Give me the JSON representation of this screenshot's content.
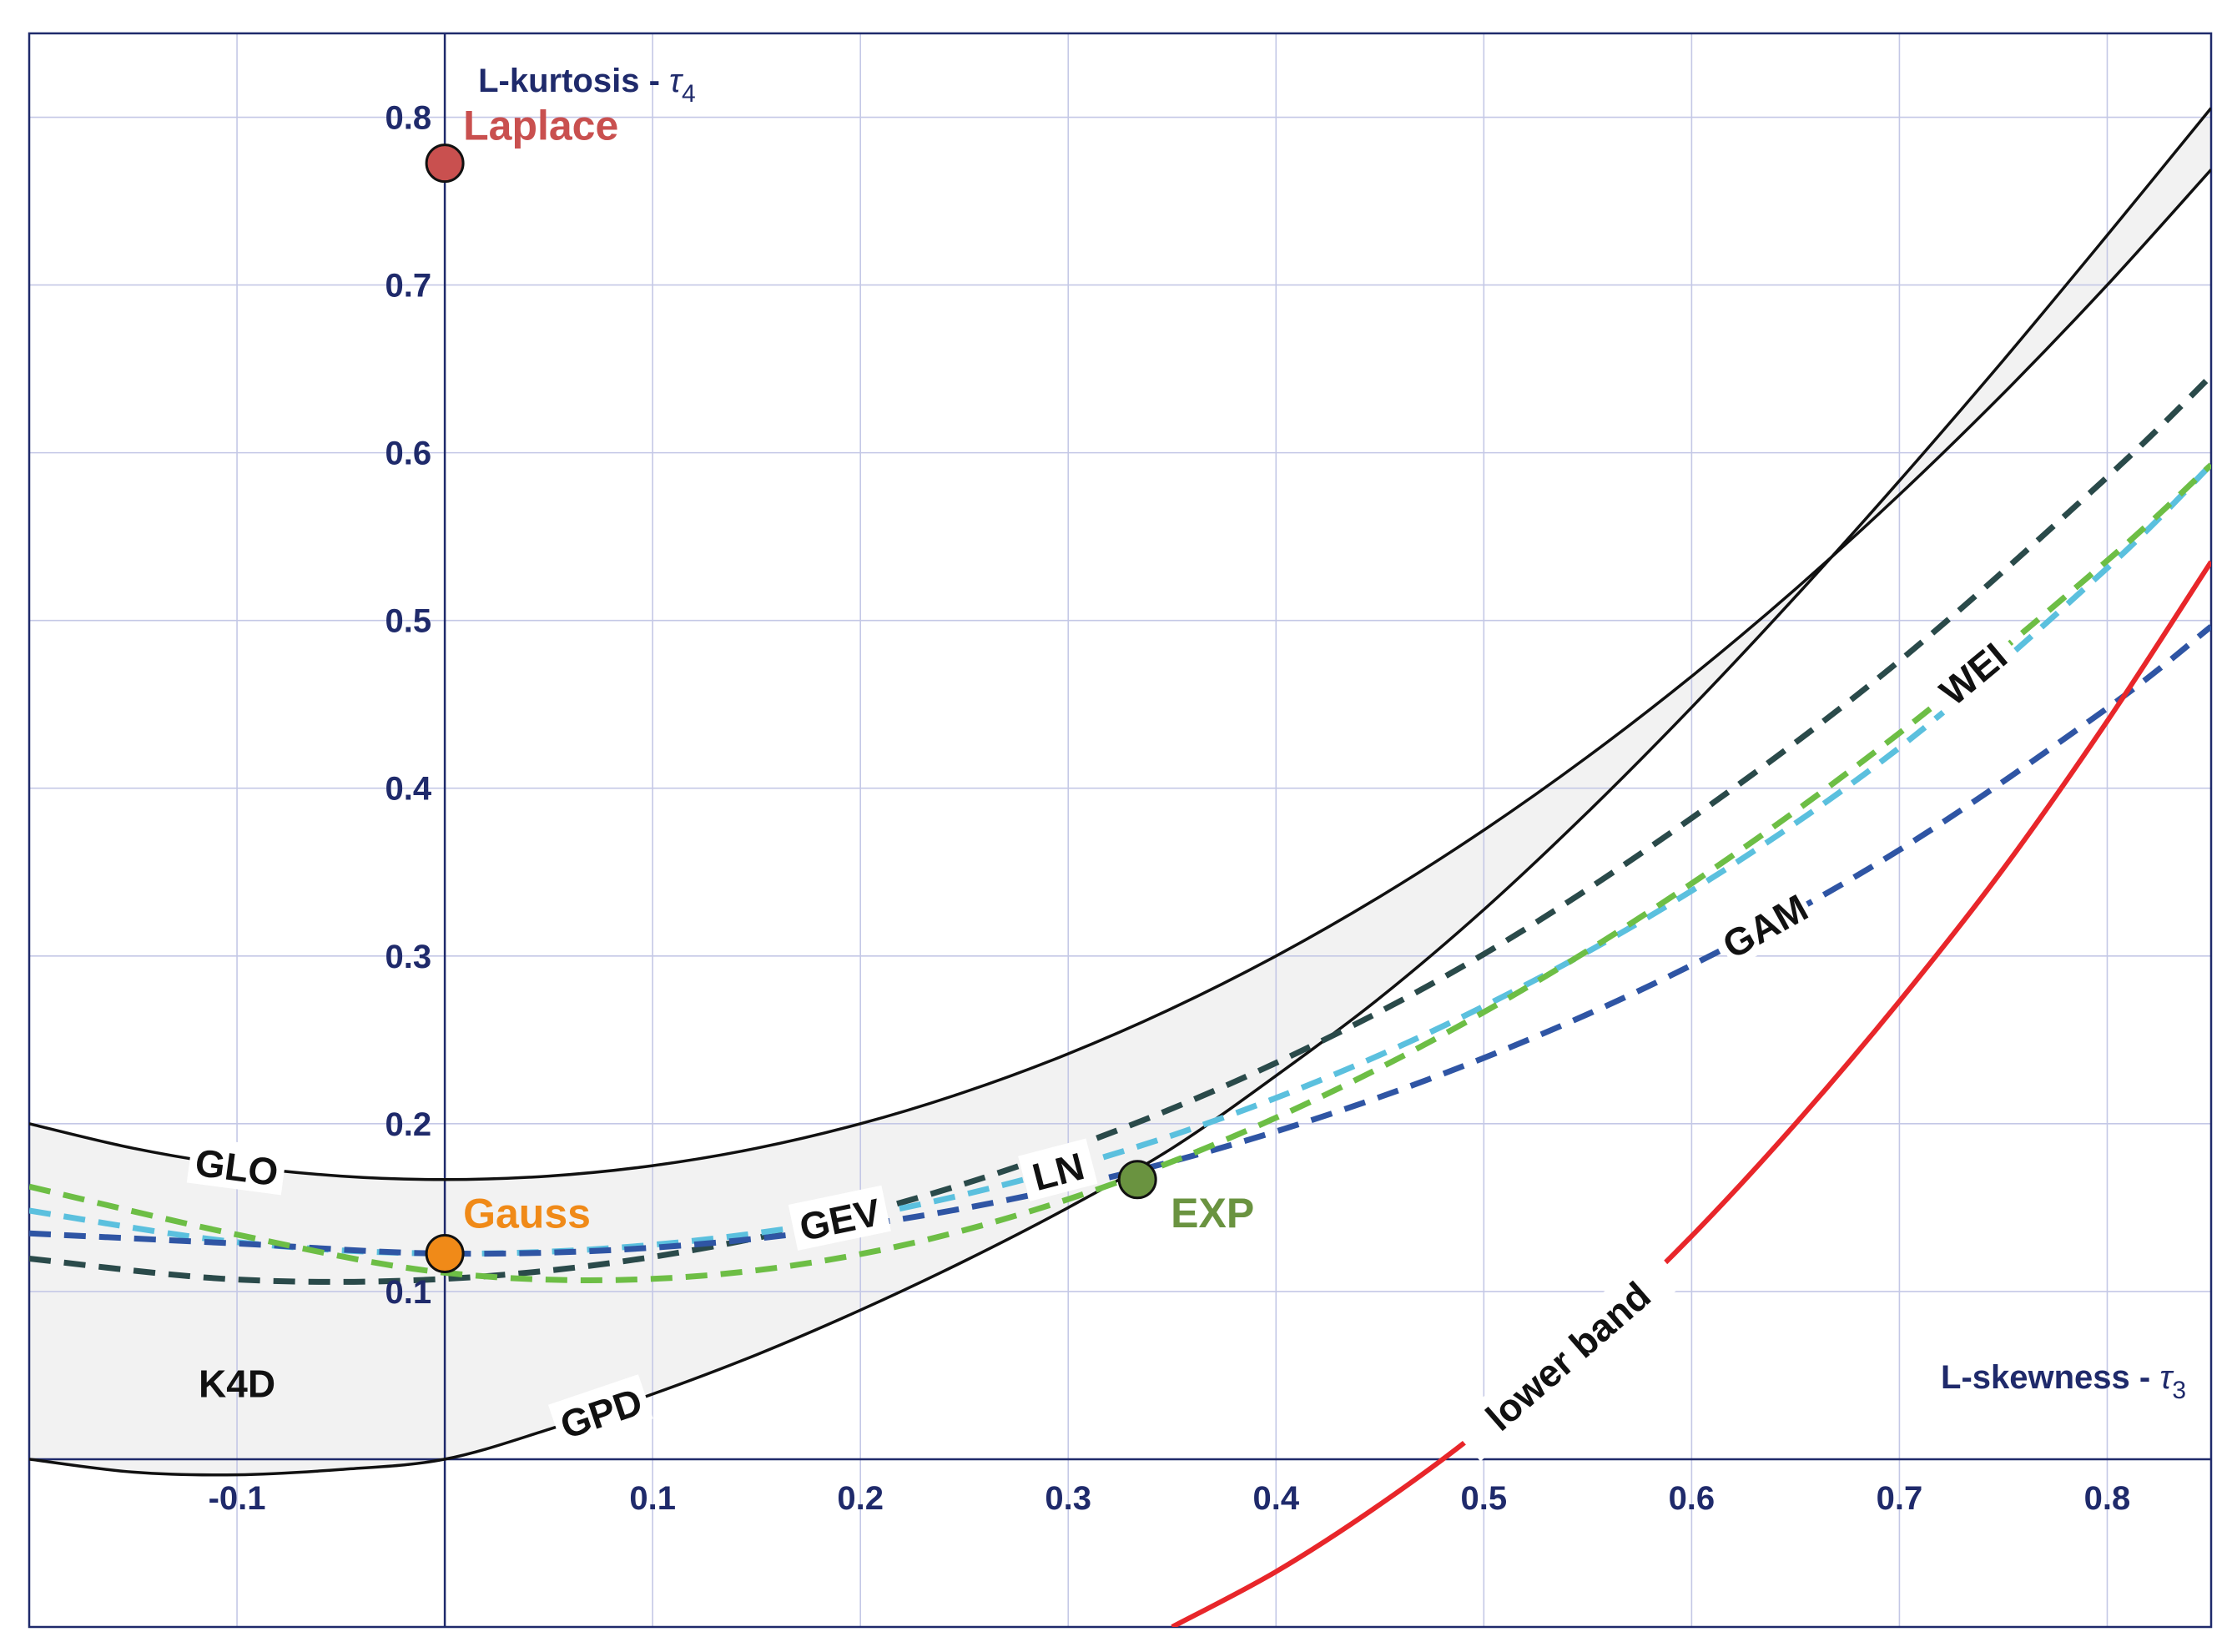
{
  "chart_data": {
    "type": "line",
    "title": "",
    "xlabel": "L-skewness - τ3",
    "ylabel": "L-kurtosis - τ4",
    "xlabel_text": "L-skewness - ",
    "xlabel_symbol": "τ",
    "xlabel_sub": "3",
    "ylabel_text": "L-kurtosis - ",
    "ylabel_symbol": "τ",
    "ylabel_sub": "4",
    "xlim": [
      -0.2,
      0.85
    ],
    "ylim": [
      -0.1,
      0.85
    ],
    "grid": true,
    "x_ticks": [
      -0.1,
      0.1,
      0.2,
      0.3,
      0.4,
      0.5,
      0.6,
      0.7,
      0.8
    ],
    "x_tick_labels": [
      "-0.1",
      "0.1",
      "0.2",
      "0.3",
      "0.4",
      "0.5",
      "0.6",
      "0.7",
      "0.8"
    ],
    "y_ticks": [
      0.1,
      0.2,
      0.3,
      0.4,
      0.5,
      0.6,
      0.7,
      0.8
    ],
    "y_tick_labels": [
      "0.1",
      "0.2",
      "0.3",
      "0.4",
      "0.5",
      "0.6",
      "0.7",
      "0.8"
    ],
    "x_gridlines": [
      -0.1,
      0.1,
      0.2,
      0.3,
      0.4,
      0.5,
      0.6,
      0.7,
      0.8
    ],
    "y_gridlines": [
      0.1,
      0.2,
      0.3,
      0.4,
      0.5,
      0.6,
      0.7,
      0.8
    ],
    "region": {
      "name": "K4D",
      "label": "K4D",
      "fill": "#f2f2f2",
      "upper_series": "GLO",
      "lower_series": "GPD"
    },
    "series": [
      {
        "name": "GLO",
        "label": "GLO",
        "color": "#111111",
        "dash": false,
        "x": [
          -0.2,
          -0.15,
          -0.1,
          -0.05,
          0.0,
          0.05,
          0.1,
          0.15,
          0.2,
          0.25,
          0.3,
          0.35,
          0.4,
          0.45,
          0.5,
          0.55,
          0.6,
          0.65,
          0.7,
          0.75,
          0.8,
          0.85
        ],
        "y": [
          0.2,
          0.1854,
          0.175,
          0.1688,
          0.1667,
          0.1688,
          0.175,
          0.1854,
          0.2,
          0.2188,
          0.2417,
          0.2688,
          0.3,
          0.3354,
          0.375,
          0.4188,
          0.4667,
          0.5188,
          0.575,
          0.6354,
          0.7,
          0.7688
        ],
        "label_at": 0
      },
      {
        "name": "GPD",
        "label": "GPD",
        "color": "#111111",
        "dash": false,
        "x": [
          -0.2,
          -0.15,
          -0.1,
          -0.05,
          0.0,
          0.05,
          0.1,
          0.15,
          0.2,
          0.25,
          0.3,
          0.35,
          0.4,
          0.45,
          0.5,
          0.55,
          0.6,
          0.65,
          0.7,
          0.75,
          0.8,
          0.85
        ],
        "y": [
          -0.0,
          -0.0077,
          -0.0093,
          -0.0061,
          0.0,
          0.0178,
          0.0388,
          0.0623,
          0.0889,
          0.1181,
          0.15,
          0.1854,
          0.2286,
          0.2751,
          0.3276,
          0.3858,
          0.4482,
          0.5142,
          0.5833,
          0.6552,
          0.7297,
          0.8055
        ],
        "label_at": 0
      },
      {
        "name": "GEV",
        "label": "GEV",
        "color": "#2a4a4a",
        "dash": true,
        "x": [
          -0.2,
          -0.1,
          0.0,
          0.1,
          0.2,
          0.3,
          0.4,
          0.5,
          0.6,
          0.7,
          0.8,
          0.85
        ],
        "y": [
          0.1196,
          0.1071,
          0.1075,
          0.1206,
          0.1464,
          0.1851,
          0.2363,
          0.3011,
          0.3822,
          0.4759,
          0.5855,
          0.6458
        ],
        "label_at": 0
      },
      {
        "name": "LN",
        "label": "LN",
        "color": "#5bc0de",
        "dash": true,
        "x": [
          -0.2,
          -0.1,
          0.0,
          0.1,
          0.2,
          0.3,
          0.4,
          0.5,
          0.6,
          0.7,
          0.8,
          0.85
        ],
        "y": [
          0.1482,
          0.1294,
          0.1226,
          0.1278,
          0.1448,
          0.1739,
          0.2154,
          0.27,
          0.3389,
          0.4242,
          0.5313,
          0.5929
        ],
        "label_at": 0
      },
      {
        "name": "GAM",
        "label": "GAM",
        "color": "#2f55a4",
        "dash": true,
        "x": [
          -0.2,
          -0.1,
          0.0,
          0.1,
          0.2,
          0.3,
          0.4,
          0.5,
          0.6,
          0.7,
          0.8,
          0.85
        ],
        "y": [
          0.1346,
          0.1286,
          0.1226,
          0.1261,
          0.1394,
          0.1623,
          0.1954,
          0.2392,
          0.2945,
          0.3632,
          0.4477,
          0.4964
        ],
        "label_at": 0
      },
      {
        "name": "WEI",
        "label": "WEI",
        "color": "#6dbe45",
        "dash": true,
        "x": [
          -0.2,
          -0.1,
          0.0,
          0.1,
          0.2,
          0.3,
          0.4,
          0.5,
          0.6,
          0.7,
          0.8,
          0.85
        ],
        "y": [
          0.1625,
          0.1339,
          0.1112,
          0.1075,
          0.1223,
          0.155,
          0.2036,
          0.2665,
          0.3432,
          0.4329,
          0.5357,
          0.5928
        ],
        "label_at": 0
      },
      {
        "name": "lower band",
        "label": "lower band",
        "color": "#e8262a",
        "dash": false,
        "x": [
          0.35,
          0.4,
          0.45,
          0.5,
          0.55,
          0.6,
          0.65,
          0.7,
          0.75,
          0.8,
          0.85
        ],
        "y": [
          -0.1,
          -0.067,
          -0.027,
          0.019,
          0.073,
          0.133,
          0.2,
          0.273,
          0.352,
          0.44,
          0.535
        ],
        "label_at": 0
      }
    ],
    "points": [
      {
        "name": "Laplace",
        "label": "Laplace",
        "x": 0.0,
        "y": 0.7726,
        "color": "#c9504f"
      },
      {
        "name": "Gauss",
        "label": "Gauss",
        "x": 0.0,
        "y": 0.1226,
        "color": "#f08a18"
      },
      {
        "name": "EXP",
        "label": "EXP",
        "x": 0.3333,
        "y": 0.1667,
        "color": "#6a9340"
      }
    ]
  }
}
